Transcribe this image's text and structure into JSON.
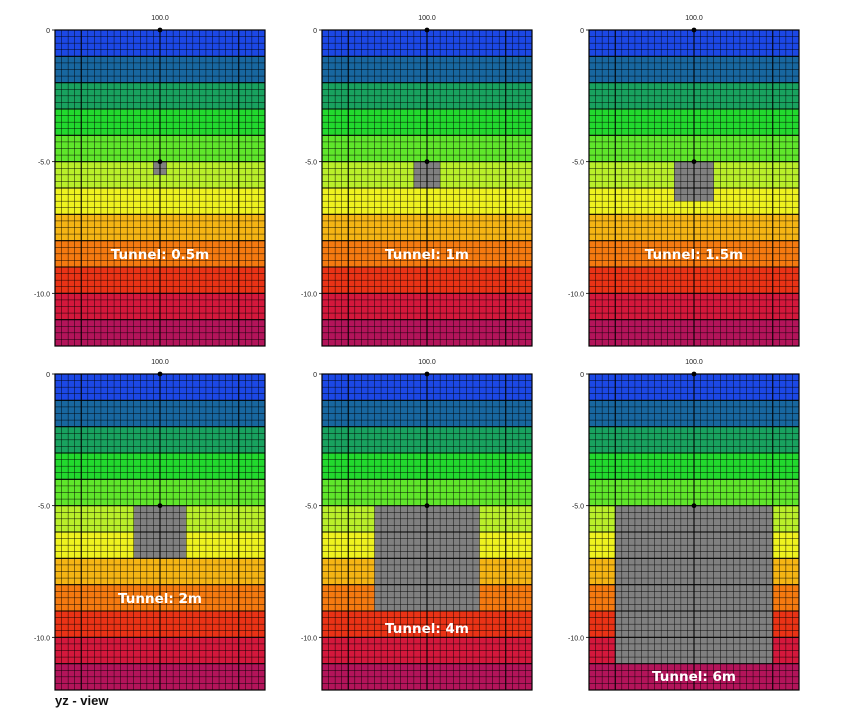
{
  "footer_label": "yz - view",
  "colors": {
    "layers": [
      "#1c48e6",
      "#1867a0",
      "#19a25f",
      "#22d92e",
      "#5fe62b",
      "#b9ef2a",
      "#eef21f",
      "#f5b514",
      "#f57a10",
      "#ea3316",
      "#d4183c",
      "#b3145a"
    ],
    "tunnel": "#808080",
    "grid": "#000000",
    "label": "#ffffff"
  },
  "panels": [
    {
      "top_tick": "100.0",
      "y_ticks": [
        "0",
        "-5.0",
        "-10.0"
      ],
      "label": "Tunnel: 0.5m",
      "tunnel": {
        "width_m": 0.5,
        "height_m": 0.5,
        "top_depth_m": 5.0
      }
    },
    {
      "top_tick": "100.0",
      "y_ticks": [
        "0",
        "-5.0",
        "-10.0"
      ],
      "label": "Tunnel: 1m",
      "tunnel": {
        "width_m": 1,
        "height_m": 1,
        "top_depth_m": 5.0
      }
    },
    {
      "top_tick": "100.0",
      "y_ticks": [
        "0",
        "-5.0",
        "-10.0"
      ],
      "label": "Tunnel: 1.5m",
      "tunnel": {
        "width_m": 1.5,
        "height_m": 1.5,
        "top_depth_m": 5.0
      }
    },
    {
      "top_tick": "100.0",
      "y_ticks": [
        "0",
        "-5.0",
        "-10.0"
      ],
      "label": "Tunnel: 2m",
      "tunnel": {
        "width_m": 2,
        "height_m": 2,
        "top_depth_m": 5.0
      }
    },
    {
      "top_tick": "100.0",
      "y_ticks": [
        "0",
        "-5.0",
        "-10.0"
      ],
      "label": "Tunnel: 4m",
      "tunnel": {
        "width_m": 4,
        "height_m": 4,
        "top_depth_m": 5.0
      }
    },
    {
      "top_tick": "100.0",
      "y_ticks": [
        "0",
        "-5.0",
        "-10.0"
      ],
      "label": "Tunnel: 6m",
      "tunnel": {
        "width_m": 6,
        "height_m": 6,
        "top_depth_m": 5.0
      }
    }
  ]
}
